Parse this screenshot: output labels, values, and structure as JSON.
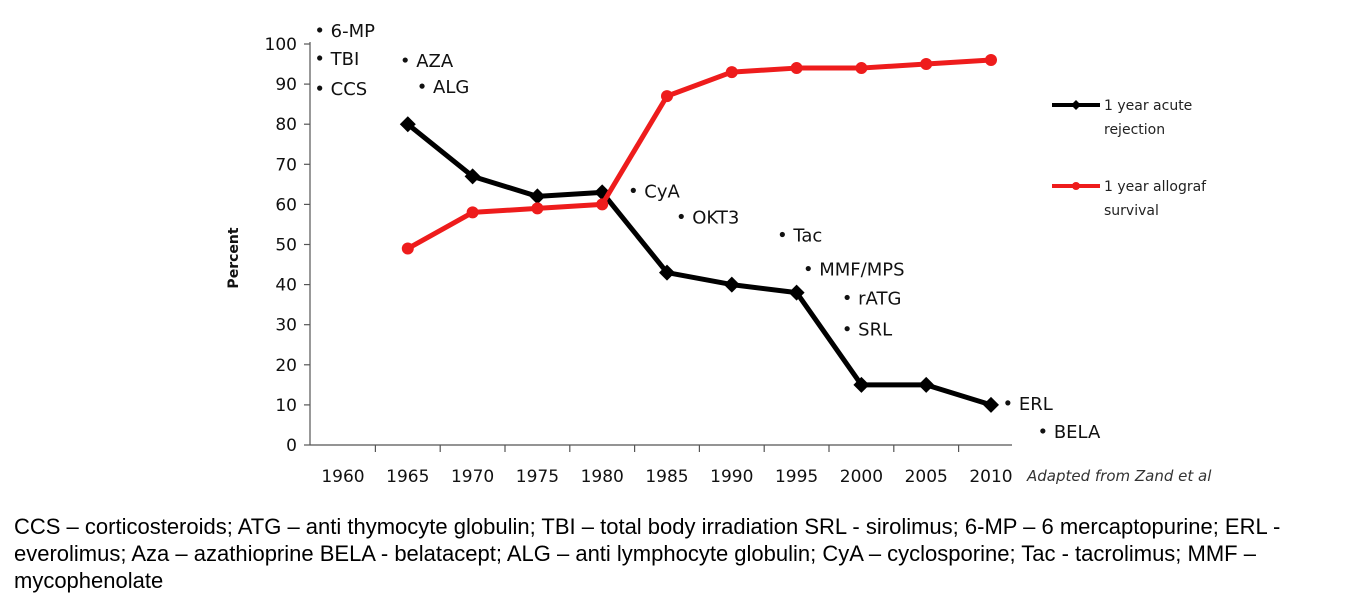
{
  "chart_data": {
    "type": "line",
    "title": "",
    "xlabel": "",
    "ylabel": "Percent",
    "categories": [
      "1960",
      "1965",
      "1970",
      "1975",
      "1980",
      "1985",
      "1990",
      "1995",
      "2000",
      "2005",
      "2010"
    ],
    "ylim": [
      0,
      100
    ],
    "yticks": [
      "0",
      "10",
      "20",
      "30",
      "40",
      "50",
      "60",
      "70",
      "80",
      "90",
      "100"
    ],
    "series": [
      {
        "name": "1 year acute rejection",
        "name_lines": [
          "1 year acute",
          "rejection"
        ],
        "color": "#000000",
        "marker": "diamond",
        "x": [
          1965,
          1970,
          1975,
          1980,
          1985,
          1990,
          1995,
          2000,
          2005,
          2010
        ],
        "values": [
          80,
          67,
          62,
          63,
          43,
          40,
          38,
          15,
          15,
          10
        ]
      },
      {
        "name": "1 year allograft survival",
        "name_lines": [
          "1 year allograf",
          "survival"
        ],
        "color": "#ee1c1c",
        "marker": "circle",
        "x": [
          1965,
          1970,
          1975,
          1980,
          1985,
          1990,
          1995,
          2000,
          2005,
          2010
        ],
        "values": [
          49,
          58,
          59,
          60,
          87,
          93,
          94,
          94,
          95,
          96
        ]
      }
    ],
    "annotations": [
      {
        "text": "6-MP",
        "x": 1958.2,
        "y": 103.5
      },
      {
        "text": "TBI",
        "x": 1958.2,
        "y": 96.5
      },
      {
        "text": "CCS",
        "x": 1958.2,
        "y": 89
      },
      {
        "text": "AZA",
        "x": 1964.8,
        "y": 96
      },
      {
        "text": "ALG",
        "x": 1966.1,
        "y": 89.5
      },
      {
        "text": "CyA",
        "x": 1982.4,
        "y": 63.5
      },
      {
        "text": "OKT3",
        "x": 1986.1,
        "y": 57
      },
      {
        "text": "Tac",
        "x": 1993.9,
        "y": 52.5
      },
      {
        "text": "MMF/MPS",
        "x": 1995.9,
        "y": 44
      },
      {
        "text": "rATG",
        "x": 1998.9,
        "y": 36.8
      },
      {
        "text": "SRL",
        "x": 1998.9,
        "y": 29
      },
      {
        "text": "ERL",
        "x": 2011.3,
        "y": 10.5
      },
      {
        "text": "BELA",
        "x": 2014,
        "y": 3.5
      }
    ],
    "credit": "Adapted from Zand et al",
    "legend_position": "right"
  },
  "caption": "CCS – corticosteroids; ATG – anti thymocyte globulin; TBI – total body irradiation SRL - sirolimus; 6-MP – 6 mercaptopurine; ERL - everolimus; Aza – azathioprine BELA - belatacept; ALG – anti lymphocyte globulin; CyA – cyclosporine; Tac - tacrolimus; MMF – mycophenolate"
}
